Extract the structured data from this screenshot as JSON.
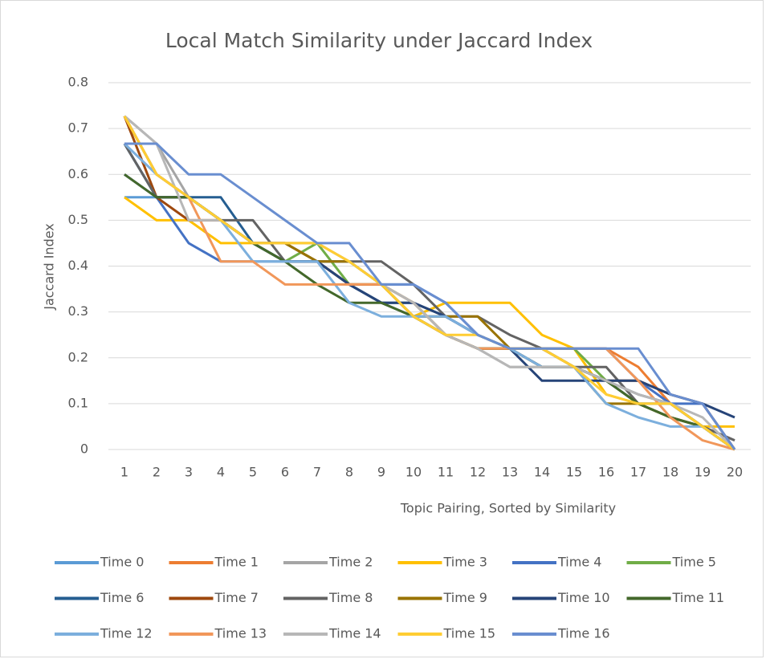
{
  "chart_data": {
    "type": "line",
    "title": "Local Match Similarity under Jaccard Index",
    "x_label": "Topic Pairing, Sorted by Similarity",
    "y_label": "Jaccard Index",
    "categories": [
      "1",
      "2",
      "3",
      "4",
      "5",
      "6",
      "7",
      "8",
      "9",
      "10",
      "11",
      "12",
      "13",
      "14",
      "15",
      "16",
      "17",
      "18",
      "19",
      "20"
    ],
    "ylim": [
      0,
      0.8
    ],
    "yticks": [
      0,
      0.1,
      0.2,
      0.3,
      0.4,
      0.5,
      0.6,
      0.7,
      0.8
    ],
    "grid": true,
    "legend": "bottom",
    "series": [
      {
        "name": "Time 0",
        "color": "#5b9bd5",
        "values": [
          0.55,
          0.55,
          0.55,
          0.5,
          0.45,
          0.41,
          0.41,
          0.36,
          0.32,
          0.29,
          0.29,
          0.25,
          0.22,
          0.18,
          0.18,
          0.15,
          0.12,
          0.1,
          0.05,
          0
        ]
      },
      {
        "name": "Time 1",
        "color": "#ed7d31",
        "values": [
          0.727,
          0.6,
          0.55,
          0.5,
          0.45,
          0.41,
          0.41,
          0.36,
          0.36,
          0.32,
          0.25,
          0.22,
          0.22,
          0.22,
          0.22,
          0.22,
          0.18,
          0.1,
          0.05,
          0
        ]
      },
      {
        "name": "Time 2",
        "color": "#a5a5a5",
        "values": [
          0.727,
          0.667,
          0.55,
          0.5,
          0.45,
          0.45,
          0.41,
          0.36,
          0.32,
          0.29,
          0.25,
          0.22,
          0.18,
          0.18,
          0.18,
          0.15,
          0.12,
          0.1,
          0.05,
          0.02
        ]
      },
      {
        "name": "Time 3",
        "color": "#ffc000",
        "values": [
          0.55,
          0.5,
          0.5,
          0.45,
          0.45,
          0.45,
          0.45,
          0.41,
          0.36,
          0.29,
          0.32,
          0.32,
          0.32,
          0.25,
          0.22,
          0.12,
          0.1,
          0.1,
          0.05,
          0.05
        ]
      },
      {
        "name": "Time 4",
        "color": "#4472c4",
        "values": [
          0.667,
          0.55,
          0.45,
          0.41,
          0.41,
          0.41,
          0.41,
          0.41,
          0.36,
          0.36,
          0.32,
          0.25,
          0.22,
          0.22,
          0.22,
          0.22,
          0.15,
          0.1,
          0.1,
          0
        ]
      },
      {
        "name": "Time 5",
        "color": "#70ad47",
        "values": [
          0.727,
          0.6,
          0.55,
          0.5,
          0.45,
          0.41,
          0.45,
          0.36,
          0.36,
          0.32,
          0.25,
          0.22,
          0.22,
          0.22,
          0.22,
          0.15,
          0.1,
          0.07,
          0.05,
          0
        ]
      },
      {
        "name": "Time 6",
        "color": "#255e91",
        "values": [
          0.667,
          0.55,
          0.55,
          0.55,
          0.45,
          0.41,
          0.41,
          0.36,
          0.32,
          0.32,
          0.29,
          0.25,
          0.22,
          0.18,
          0.18,
          0.15,
          0.1,
          0.1,
          0.05,
          0
        ]
      },
      {
        "name": "Time 7",
        "color": "#9e480e",
        "values": [
          0.727,
          0.55,
          0.5,
          0.5,
          0.45,
          0.45,
          0.41,
          0.36,
          0.36,
          0.29,
          0.25,
          0.22,
          0.22,
          0.18,
          0.18,
          0.15,
          0.15,
          0.12,
          0.1,
          0
        ]
      },
      {
        "name": "Time 8",
        "color": "#636363",
        "values": [
          0.667,
          0.55,
          0.55,
          0.5,
          0.5,
          0.41,
          0.41,
          0.41,
          0.41,
          0.36,
          0.29,
          0.29,
          0.25,
          0.22,
          0.18,
          0.18,
          0.1,
          0.07,
          0.05,
          0.02
        ]
      },
      {
        "name": "Time 9",
        "color": "#997300",
        "values": [
          0.727,
          0.6,
          0.55,
          0.5,
          0.45,
          0.45,
          0.41,
          0.41,
          0.36,
          0.29,
          0.29,
          0.29,
          0.22,
          0.22,
          0.18,
          0.1,
          0.1,
          0.07,
          0.05,
          0
        ]
      },
      {
        "name": "Time 10",
        "color": "#264478",
        "values": [
          0.6,
          0.55,
          0.55,
          0.5,
          0.45,
          0.41,
          0.41,
          0.36,
          0.32,
          0.32,
          0.29,
          0.25,
          0.22,
          0.15,
          0.15,
          0.15,
          0.15,
          0.12,
          0.1,
          0.07
        ]
      },
      {
        "name": "Time 11",
        "color": "#43682b",
        "values": [
          0.6,
          0.55,
          0.55,
          0.5,
          0.45,
          0.41,
          0.36,
          0.32,
          0.32,
          0.29,
          0.25,
          0.22,
          0.22,
          0.18,
          0.18,
          0.15,
          0.1,
          0.07,
          0.05,
          0
        ]
      },
      {
        "name": "Time 12",
        "color": "#7cafdd",
        "values": [
          0.667,
          0.6,
          0.55,
          0.5,
          0.41,
          0.41,
          0.41,
          0.32,
          0.29,
          0.29,
          0.29,
          0.25,
          0.22,
          0.18,
          0.18,
          0.1,
          0.07,
          0.05,
          0.05,
          0
        ]
      },
      {
        "name": "Time 13",
        "color": "#f1975a",
        "values": [
          0.727,
          0.6,
          0.55,
          0.41,
          0.41,
          0.36,
          0.36,
          0.36,
          0.36,
          0.32,
          0.25,
          0.22,
          0.22,
          0.22,
          0.22,
          0.22,
          0.15,
          0.07,
          0.02,
          0
        ]
      },
      {
        "name": "Time 14",
        "color": "#b7b7b7",
        "values": [
          0.727,
          0.667,
          0.5,
          0.5,
          0.45,
          0.45,
          0.45,
          0.41,
          0.36,
          0.32,
          0.25,
          0.22,
          0.18,
          0.18,
          0.18,
          0.15,
          0.12,
          0.1,
          0.07,
          0
        ]
      },
      {
        "name": "Time 15",
        "color": "#ffcd33",
        "values": [
          0.727,
          0.6,
          0.55,
          0.5,
          0.45,
          0.45,
          0.45,
          0.41,
          0.36,
          0.29,
          0.25,
          0.25,
          0.22,
          0.22,
          0.18,
          0.12,
          0.1,
          0.1,
          0.05,
          0
        ]
      },
      {
        "name": "Time 16",
        "color": "#698ed0",
        "values": [
          0.667,
          0.667,
          0.6,
          0.6,
          0.55,
          0.5,
          0.45,
          0.45,
          0.36,
          0.36,
          0.32,
          0.25,
          0.22,
          0.22,
          0.22,
          0.22,
          0.22,
          0.12,
          0.1,
          0
        ]
      }
    ]
  }
}
